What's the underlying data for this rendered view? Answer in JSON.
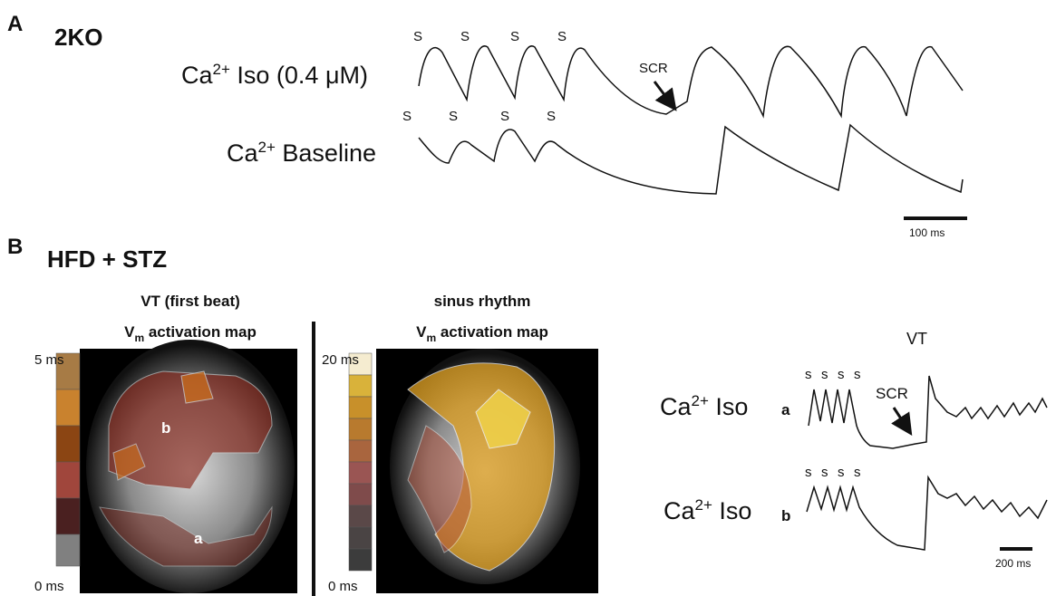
{
  "panel_a": {
    "label": "A",
    "title": "2KO",
    "trace_iso": {
      "label": [
        "Ca",
        "2+",
        " Iso (0.4 μM)"
      ],
      "stim": [
        "S",
        "S",
        "S",
        "S"
      ],
      "annotation": "SCR"
    },
    "trace_baseline": {
      "label": [
        "Ca",
        "2+",
        " Baseline"
      ],
      "stim": [
        "S",
        "S",
        "S",
        "S"
      ]
    },
    "scale_bar": "100 ms"
  },
  "panel_b": {
    "label": "B",
    "title": "HFD + STZ",
    "map_vt": {
      "title": "VT (first beat)",
      "subtitle": [
        "V",
        "m",
        " activation map"
      ],
      "scale_max": "5 ms",
      "scale_min": "0 ms",
      "sites": [
        "b",
        "a"
      ]
    },
    "map_sinus": {
      "title": "sinus rhythm",
      "subtitle": [
        "V",
        "m",
        " activation map"
      ],
      "scale_max": "20 ms",
      "scale_min": "0 ms"
    },
    "traces": {
      "title": "VT",
      "trace_a": {
        "label": [
          "Ca",
          "2+",
          " Iso"
        ],
        "site": "a",
        "stim": [
          "s",
          "s",
          "s",
          "s"
        ],
        "annotation": "SCR"
      },
      "trace_b": {
        "label": [
          "Ca",
          "2+",
          " Iso"
        ],
        "site": "b",
        "stim": [
          "s",
          "s",
          "s",
          "s"
        ]
      },
      "scale_bar": "200 ms"
    }
  }
}
